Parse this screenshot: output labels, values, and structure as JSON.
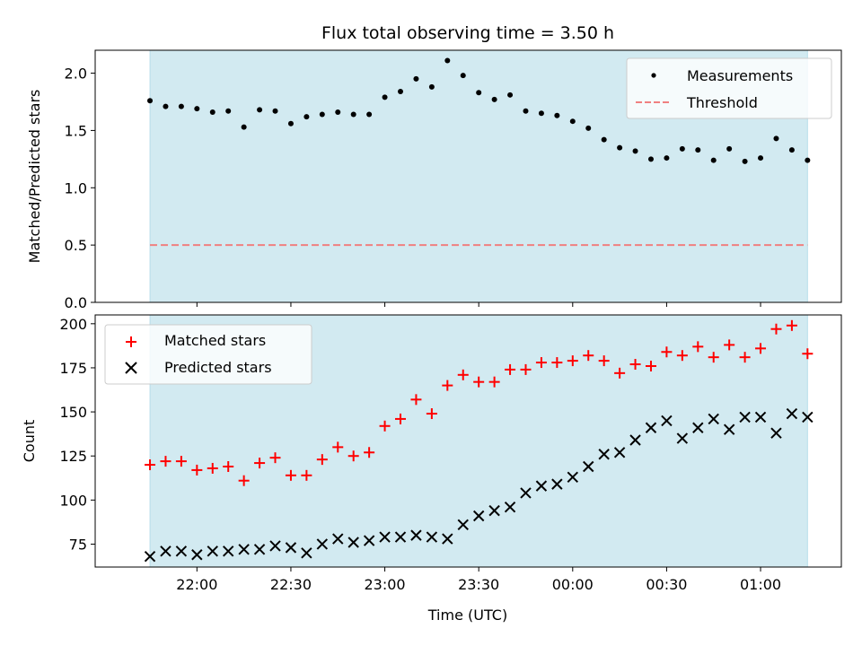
{
  "chart_data": [
    {
      "type": "scatter",
      "title": "Flux total observing time = 3.50 h",
      "xlabel": "",
      "ylabel": "Matched/Predicted stars",
      "ylim": [
        0,
        2.2
      ],
      "yticks": [
        "0.0",
        "0.5",
        "1.0",
        "1.5",
        "2.0"
      ],
      "shaded_band": "observing window",
      "band_color": "#add8e6",
      "legend_position": "top-right",
      "series": [
        {
          "name": "Measurements",
          "color": "#000000",
          "marker": "dot",
          "x": [
            "21:45",
            "21:50",
            "21:55",
            "22:00",
            "22:05",
            "22:10",
            "22:15",
            "22:20",
            "22:25",
            "22:30",
            "22:35",
            "22:40",
            "22:45",
            "22:50",
            "22:55",
            "23:00",
            "23:05",
            "23:10",
            "23:15",
            "23:20",
            "23:25",
            "23:30",
            "23:35",
            "23:40",
            "23:45",
            "23:50",
            "23:55",
            "00:00",
            "00:05",
            "00:10",
            "00:15",
            "00:20",
            "00:25",
            "00:30",
            "00:35",
            "00:40",
            "00:45",
            "00:50",
            "00:55",
            "01:00",
            "01:05",
            "01:10",
            "01:15"
          ],
          "values": [
            1.76,
            1.71,
            1.71,
            1.69,
            1.66,
            1.67,
            1.53,
            1.68,
            1.67,
            1.56,
            1.62,
            1.64,
            1.66,
            1.64,
            1.64,
            1.79,
            1.84,
            1.95,
            1.88,
            2.11,
            1.98,
            1.83,
            1.77,
            1.81,
            1.67,
            1.65,
            1.63,
            1.58,
            1.52,
            1.42,
            1.35,
            1.32,
            1.25,
            1.26,
            1.34,
            1.33,
            1.24,
            1.34,
            1.23,
            1.26,
            1.43,
            1.33,
            1.24
          ]
        },
        {
          "name": "Threshold",
          "color": "#f08080",
          "style": "dashed",
          "value": 0.5
        }
      ]
    },
    {
      "type": "scatter",
      "title": "",
      "xlabel": "Time (UTC)",
      "ylabel": "Count",
      "ylim": [
        62,
        205
      ],
      "yticks": [
        "75",
        "100",
        "125",
        "150",
        "175",
        "200"
      ],
      "xticks": [
        "22:00",
        "22:30",
        "23:00",
        "23:30",
        "00:00",
        "00:30",
        "01:00"
      ],
      "shaded_band": "observing window",
      "band_color": "#add8e6",
      "legend_position": "top-left",
      "series": [
        {
          "name": "Matched stars",
          "color": "#ff0000",
          "marker": "plus",
          "x": [
            "21:45",
            "21:50",
            "21:55",
            "22:00",
            "22:05",
            "22:10",
            "22:15",
            "22:20",
            "22:25",
            "22:30",
            "22:35",
            "22:40",
            "22:45",
            "22:50",
            "22:55",
            "23:00",
            "23:05",
            "23:10",
            "23:15",
            "23:20",
            "23:25",
            "23:30",
            "23:35",
            "23:40",
            "23:45",
            "23:50",
            "23:55",
            "00:00",
            "00:05",
            "00:10",
            "00:15",
            "00:20",
            "00:25",
            "00:30",
            "00:35",
            "00:40",
            "00:45",
            "00:50",
            "00:55",
            "01:00",
            "01:05",
            "01:10",
            "01:15"
          ],
          "values": [
            120,
            122,
            122,
            117,
            118,
            119,
            111,
            121,
            124,
            114,
            114,
            123,
            130,
            125,
            127,
            142,
            146,
            157,
            149,
            165,
            171,
            167,
            167,
            174,
            174,
            178,
            178,
            179,
            182,
            179,
            172,
            177,
            176,
            184,
            182,
            187,
            181,
            188,
            181,
            186,
            197,
            199,
            183
          ]
        },
        {
          "name": "Predicted stars",
          "color": "#000000",
          "marker": "x",
          "x": [
            "21:45",
            "21:50",
            "21:55",
            "22:00",
            "22:05",
            "22:10",
            "22:15",
            "22:20",
            "22:25",
            "22:30",
            "22:35",
            "22:40",
            "22:45",
            "22:50",
            "22:55",
            "23:00",
            "23:05",
            "23:10",
            "23:15",
            "23:20",
            "23:25",
            "23:30",
            "23:35",
            "23:40",
            "23:45",
            "23:50",
            "23:55",
            "00:00",
            "00:05",
            "00:10",
            "00:15",
            "00:20",
            "00:25",
            "00:30",
            "00:35",
            "00:40",
            "00:45",
            "00:50",
            "00:55",
            "01:00",
            "01:05",
            "01:10",
            "01:15"
          ],
          "values": [
            68,
            71,
            71,
            69,
            71,
            71,
            72,
            72,
            74,
            73,
            70,
            75,
            78,
            76,
            77,
            79,
            79,
            80,
            79,
            78,
            86,
            91,
            94,
            96,
            104,
            108,
            109,
            113,
            119,
            126,
            127,
            134,
            141,
            145,
            135,
            141,
            146,
            140,
            147,
            147,
            138,
            149,
            147
          ]
        }
      ]
    }
  ]
}
